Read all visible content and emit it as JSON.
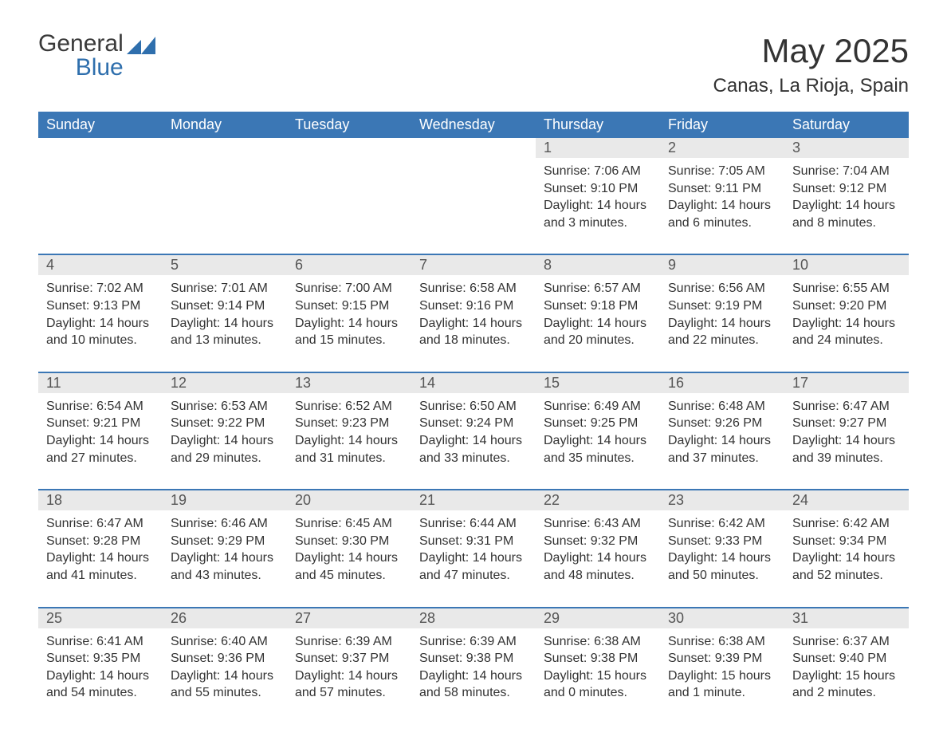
{
  "logo": {
    "text_general": "General",
    "text_blue": "Blue",
    "mark_color": "#2f6fad"
  },
  "header": {
    "title": "May 2025",
    "location": "Canas, La Rioja, Spain"
  },
  "calendar": {
    "type": "calendar-table",
    "columns": 7,
    "rows": 5,
    "header_bg": "#3b77b5",
    "header_fg": "#ffffff",
    "header_fontsize": 18,
    "daynum_bg": "#e9e9e9",
    "daynum_fg": "#555555",
    "row_separator_color": "#3b77b5",
    "body_fg": "#333333",
    "body_fontsize": 16,
    "background_color": "#ffffff",
    "day_headers": [
      "Sunday",
      "Monday",
      "Tuesday",
      "Wednesday",
      "Thursday",
      "Friday",
      "Saturday"
    ],
    "labels": {
      "sunrise": "Sunrise:",
      "sunset": "Sunset:",
      "daylight": "Daylight:"
    },
    "weeks": [
      [
        null,
        null,
        null,
        null,
        {
          "n": "1",
          "sunrise": "7:06 AM",
          "sunset": "9:10 PM",
          "daylight1": "14 hours",
          "daylight2": "and 3 minutes."
        },
        {
          "n": "2",
          "sunrise": "7:05 AM",
          "sunset": "9:11 PM",
          "daylight1": "14 hours",
          "daylight2": "and 6 minutes."
        },
        {
          "n": "3",
          "sunrise": "7:04 AM",
          "sunset": "9:12 PM",
          "daylight1": "14 hours",
          "daylight2": "and 8 minutes."
        }
      ],
      [
        {
          "n": "4",
          "sunrise": "7:02 AM",
          "sunset": "9:13 PM",
          "daylight1": "14 hours",
          "daylight2": "and 10 minutes."
        },
        {
          "n": "5",
          "sunrise": "7:01 AM",
          "sunset": "9:14 PM",
          "daylight1": "14 hours",
          "daylight2": "and 13 minutes."
        },
        {
          "n": "6",
          "sunrise": "7:00 AM",
          "sunset": "9:15 PM",
          "daylight1": "14 hours",
          "daylight2": "and 15 minutes."
        },
        {
          "n": "7",
          "sunrise": "6:58 AM",
          "sunset": "9:16 PM",
          "daylight1": "14 hours",
          "daylight2": "and 18 minutes."
        },
        {
          "n": "8",
          "sunrise": "6:57 AM",
          "sunset": "9:18 PM",
          "daylight1": "14 hours",
          "daylight2": "and 20 minutes."
        },
        {
          "n": "9",
          "sunrise": "6:56 AM",
          "sunset": "9:19 PM",
          "daylight1": "14 hours",
          "daylight2": "and 22 minutes."
        },
        {
          "n": "10",
          "sunrise": "6:55 AM",
          "sunset": "9:20 PM",
          "daylight1": "14 hours",
          "daylight2": "and 24 minutes."
        }
      ],
      [
        {
          "n": "11",
          "sunrise": "6:54 AM",
          "sunset": "9:21 PM",
          "daylight1": "14 hours",
          "daylight2": "and 27 minutes."
        },
        {
          "n": "12",
          "sunrise": "6:53 AM",
          "sunset": "9:22 PM",
          "daylight1": "14 hours",
          "daylight2": "and 29 minutes."
        },
        {
          "n": "13",
          "sunrise": "6:52 AM",
          "sunset": "9:23 PM",
          "daylight1": "14 hours",
          "daylight2": "and 31 minutes."
        },
        {
          "n": "14",
          "sunrise": "6:50 AM",
          "sunset": "9:24 PM",
          "daylight1": "14 hours",
          "daylight2": "and 33 minutes."
        },
        {
          "n": "15",
          "sunrise": "6:49 AM",
          "sunset": "9:25 PM",
          "daylight1": "14 hours",
          "daylight2": "and 35 minutes."
        },
        {
          "n": "16",
          "sunrise": "6:48 AM",
          "sunset": "9:26 PM",
          "daylight1": "14 hours",
          "daylight2": "and 37 minutes."
        },
        {
          "n": "17",
          "sunrise": "6:47 AM",
          "sunset": "9:27 PM",
          "daylight1": "14 hours",
          "daylight2": "and 39 minutes."
        }
      ],
      [
        {
          "n": "18",
          "sunrise": "6:47 AM",
          "sunset": "9:28 PM",
          "daylight1": "14 hours",
          "daylight2": "and 41 minutes."
        },
        {
          "n": "19",
          "sunrise": "6:46 AM",
          "sunset": "9:29 PM",
          "daylight1": "14 hours",
          "daylight2": "and 43 minutes."
        },
        {
          "n": "20",
          "sunrise": "6:45 AM",
          "sunset": "9:30 PM",
          "daylight1": "14 hours",
          "daylight2": "and 45 minutes."
        },
        {
          "n": "21",
          "sunrise": "6:44 AM",
          "sunset": "9:31 PM",
          "daylight1": "14 hours",
          "daylight2": "and 47 minutes."
        },
        {
          "n": "22",
          "sunrise": "6:43 AM",
          "sunset": "9:32 PM",
          "daylight1": "14 hours",
          "daylight2": "and 48 minutes."
        },
        {
          "n": "23",
          "sunrise": "6:42 AM",
          "sunset": "9:33 PM",
          "daylight1": "14 hours",
          "daylight2": "and 50 minutes."
        },
        {
          "n": "24",
          "sunrise": "6:42 AM",
          "sunset": "9:34 PM",
          "daylight1": "14 hours",
          "daylight2": "and 52 minutes."
        }
      ],
      [
        {
          "n": "25",
          "sunrise": "6:41 AM",
          "sunset": "9:35 PM",
          "daylight1": "14 hours",
          "daylight2": "and 54 minutes."
        },
        {
          "n": "26",
          "sunrise": "6:40 AM",
          "sunset": "9:36 PM",
          "daylight1": "14 hours",
          "daylight2": "and 55 minutes."
        },
        {
          "n": "27",
          "sunrise": "6:39 AM",
          "sunset": "9:37 PM",
          "daylight1": "14 hours",
          "daylight2": "and 57 minutes."
        },
        {
          "n": "28",
          "sunrise": "6:39 AM",
          "sunset": "9:38 PM",
          "daylight1": "14 hours",
          "daylight2": "and 58 minutes."
        },
        {
          "n": "29",
          "sunrise": "6:38 AM",
          "sunset": "9:38 PM",
          "daylight1": "15 hours",
          "daylight2": "and 0 minutes."
        },
        {
          "n": "30",
          "sunrise": "6:38 AM",
          "sunset": "9:39 PM",
          "daylight1": "15 hours",
          "daylight2": "and 1 minute."
        },
        {
          "n": "31",
          "sunrise": "6:37 AM",
          "sunset": "9:40 PM",
          "daylight1": "15 hours",
          "daylight2": "and 2 minutes."
        }
      ]
    ]
  }
}
